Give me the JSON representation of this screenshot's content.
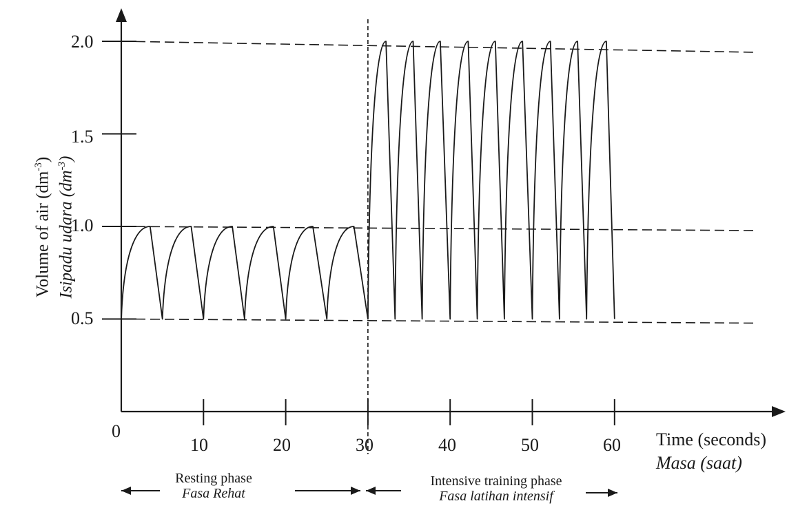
{
  "chart_data": {
    "type": "line",
    "xlabel": "Time (seconds)",
    "xlabel_alt": "Masa (saat)",
    "ylabel": "Volume of air (dm-3)",
    "ylabel_alt": "Isipadu udara (dm-3)",
    "ylabel_sup": "-3",
    "x_ticks": [
      0,
      10,
      20,
      30,
      40,
      50,
      60
    ],
    "x_tick_labels": [
      "0",
      "10",
      "20",
      "30",
      "40",
      "50",
      "60"
    ],
    "y_ticks": [
      0.5,
      1.0,
      1.5,
      2.0
    ],
    "y_tick_labels": [
      "0.5",
      "1.0",
      "1.5",
      "2.0"
    ],
    "xlim": [
      0,
      80
    ],
    "ylim": [
      0,
      2.2
    ],
    "reference_lines": [
      0.5,
      1.0,
      2.0
    ],
    "phase_divider_x": 30,
    "phases": [
      {
        "label": "Resting phase",
        "label_alt": "Fasa Rehat"
      },
      {
        "label": "Intensive training phase",
        "label_alt": "Fasa latihan intensif"
      }
    ],
    "series": [
      {
        "x": [
          0,
          3.5,
          5,
          8.5,
          10,
          13.5,
          15,
          18.5,
          20,
          23.3,
          25,
          28.3,
          30,
          32.2,
          33.3,
          35.5,
          36.6,
          38.8,
          40,
          42.2,
          43.3,
          45.5,
          46.6,
          48.8,
          50,
          52.2,
          53.3,
          55.5,
          56.6,
          59,
          60
        ],
        "y": [
          0.5,
          1.0,
          0.5,
          1.0,
          0.5,
          1.0,
          0.5,
          1.0,
          0.5,
          1.0,
          0.5,
          1.0,
          0.5,
          2.0,
          0.5,
          2.0,
          0.5,
          2.0,
          0.5,
          2.0,
          0.5,
          2.0,
          0.5,
          2.0,
          0.5,
          2.0,
          0.5,
          2.0,
          0.5,
          2.0,
          0.5
        ]
      }
    ]
  }
}
